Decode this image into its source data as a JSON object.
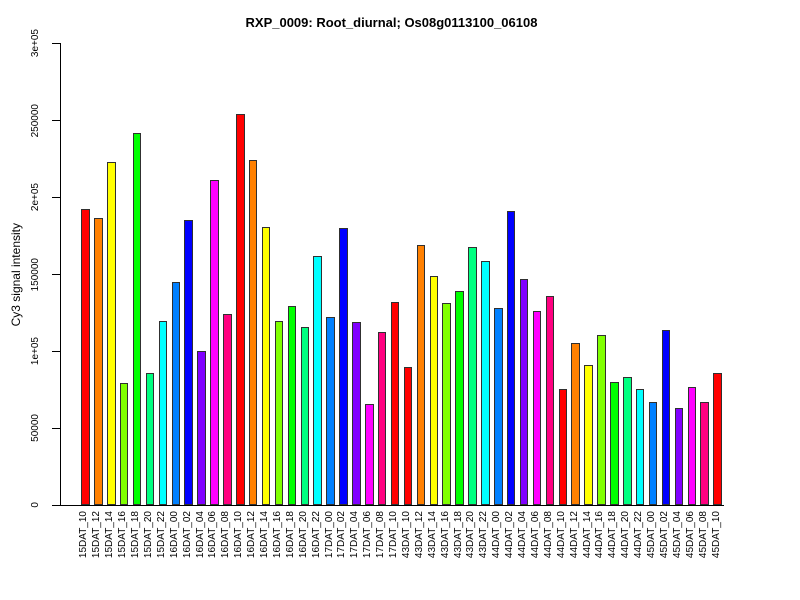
{
  "figure": {
    "background": "#ffffff",
    "text_color": "#000000"
  },
  "chart_data": {
    "type": "bar",
    "title": "RXP_0009: Root_diurnal; Os08g0113100_06108",
    "xlabel": "",
    "ylabel": "Cy3 signal intensity",
    "ylim": [
      0,
      300000
    ],
    "grid": false,
    "legend": null,
    "bar_border_color": "#303030",
    "palette": [
      "#FF0000",
      "#FF8000",
      "#FFFF00",
      "#80FF00",
      "#00FF00",
      "#00FF80",
      "#00FFFF",
      "#0080FF",
      "#0000FF",
      "#8000FF",
      "#FF00FF",
      "#FF0080"
    ],
    "yticks": [
      {
        "value": 0,
        "label": "0"
      },
      {
        "value": 50000,
        "label": "50000"
      },
      {
        "value": 100000,
        "label": "1e+05"
      },
      {
        "value": 150000,
        "label": "150000"
      },
      {
        "value": 200000,
        "label": "2e+05"
      },
      {
        "value": 250000,
        "label": "250000"
      },
      {
        "value": 300000,
        "label": "3e+05"
      }
    ],
    "bars": [
      {
        "label": "15DAT_10",
        "value": 192200,
        "color": "#FF0000"
      },
      {
        "label": "15DAT_12",
        "value": 186100,
        "color": "#FF8000"
      },
      {
        "label": "15DAT_14",
        "value": 222500,
        "color": "#FFFF00"
      },
      {
        "label": "15DAT_16",
        "value": 79000,
        "color": "#80FF00"
      },
      {
        "label": "15DAT_18",
        "value": 241300,
        "color": "#00FF00"
      },
      {
        "label": "15DAT_20",
        "value": 85500,
        "color": "#00FF80"
      },
      {
        "label": "15DAT_22",
        "value": 119500,
        "color": "#00FFFF"
      },
      {
        "label": "16DAT_00",
        "value": 145000,
        "color": "#0080FF"
      },
      {
        "label": "16DAT_02",
        "value": 185100,
        "color": "#0000FF"
      },
      {
        "label": "16DAT_04",
        "value": 100200,
        "color": "#8000FF"
      },
      {
        "label": "16DAT_06",
        "value": 211000,
        "color": "#FF00FF"
      },
      {
        "label": "16DAT_08",
        "value": 123800,
        "color": "#FF0080"
      },
      {
        "label": "16DAT_10",
        "value": 253900,
        "color": "#FF0000"
      },
      {
        "label": "16DAT_12",
        "value": 224000,
        "color": "#FF8000"
      },
      {
        "label": "16DAT_14",
        "value": 180700,
        "color": "#FFFF00"
      },
      {
        "label": "16DAT_16",
        "value": 119500,
        "color": "#80FF00"
      },
      {
        "label": "16DAT_18",
        "value": 129200,
        "color": "#00FF00"
      },
      {
        "label": "16DAT_20",
        "value": 115800,
        "color": "#00FF80"
      },
      {
        "label": "16DAT_22",
        "value": 161900,
        "color": "#00FFFF"
      },
      {
        "label": "17DAT_00",
        "value": 122300,
        "color": "#0080FF"
      },
      {
        "label": "17DAT_02",
        "value": 179600,
        "color": "#0000FF"
      },
      {
        "label": "17DAT_04",
        "value": 119000,
        "color": "#8000FF"
      },
      {
        "label": "17DAT_06",
        "value": 65400,
        "color": "#FF00FF"
      },
      {
        "label": "17DAT_08",
        "value": 112500,
        "color": "#FF0080"
      },
      {
        "label": "17DAT_10",
        "value": 132000,
        "color": "#FF0000"
      },
      {
        "label": "43DAT_10",
        "value": 89400,
        "color": "#FF0000"
      },
      {
        "label": "43DAT_12",
        "value": 169000,
        "color": "#FF8000"
      },
      {
        "label": "43DAT_14",
        "value": 148900,
        "color": "#FFFF00"
      },
      {
        "label": "43DAT_16",
        "value": 131000,
        "color": "#80FF00"
      },
      {
        "label": "43DAT_18",
        "value": 139200,
        "color": "#00FF00"
      },
      {
        "label": "43DAT_20",
        "value": 167700,
        "color": "#00FF80"
      },
      {
        "label": "43DAT_22",
        "value": 158400,
        "color": "#00FFFF"
      },
      {
        "label": "44DAT_00",
        "value": 127700,
        "color": "#0080FF"
      },
      {
        "label": "44DAT_02",
        "value": 190900,
        "color": "#0000FF"
      },
      {
        "label": "44DAT_04",
        "value": 146800,
        "color": "#8000FF"
      },
      {
        "label": "44DAT_06",
        "value": 126000,
        "color": "#FF00FF"
      },
      {
        "label": "44DAT_08",
        "value": 135700,
        "color": "#FF0080"
      },
      {
        "label": "44DAT_10",
        "value": 75100,
        "color": "#FF0000"
      },
      {
        "label": "44DAT_12",
        "value": 105400,
        "color": "#FF8000"
      },
      {
        "label": "44DAT_14",
        "value": 90900,
        "color": "#FFFF00"
      },
      {
        "label": "44DAT_16",
        "value": 110200,
        "color": "#80FF00"
      },
      {
        "label": "44DAT_18",
        "value": 80100,
        "color": "#00FF00"
      },
      {
        "label": "44DAT_20",
        "value": 82900,
        "color": "#00FF80"
      },
      {
        "label": "44DAT_22",
        "value": 75300,
        "color": "#00FFFF"
      },
      {
        "label": "45DAT_00",
        "value": 67100,
        "color": "#0080FF"
      },
      {
        "label": "45DAT_02",
        "value": 113600,
        "color": "#0000FF"
      },
      {
        "label": "45DAT_04",
        "value": 62800,
        "color": "#8000FF"
      },
      {
        "label": "45DAT_06",
        "value": 76400,
        "color": "#FF00FF"
      },
      {
        "label": "45DAT_08",
        "value": 66700,
        "color": "#FF0080"
      },
      {
        "label": "45DAT_10",
        "value": 85500,
        "color": "#FF0000"
      }
    ]
  }
}
